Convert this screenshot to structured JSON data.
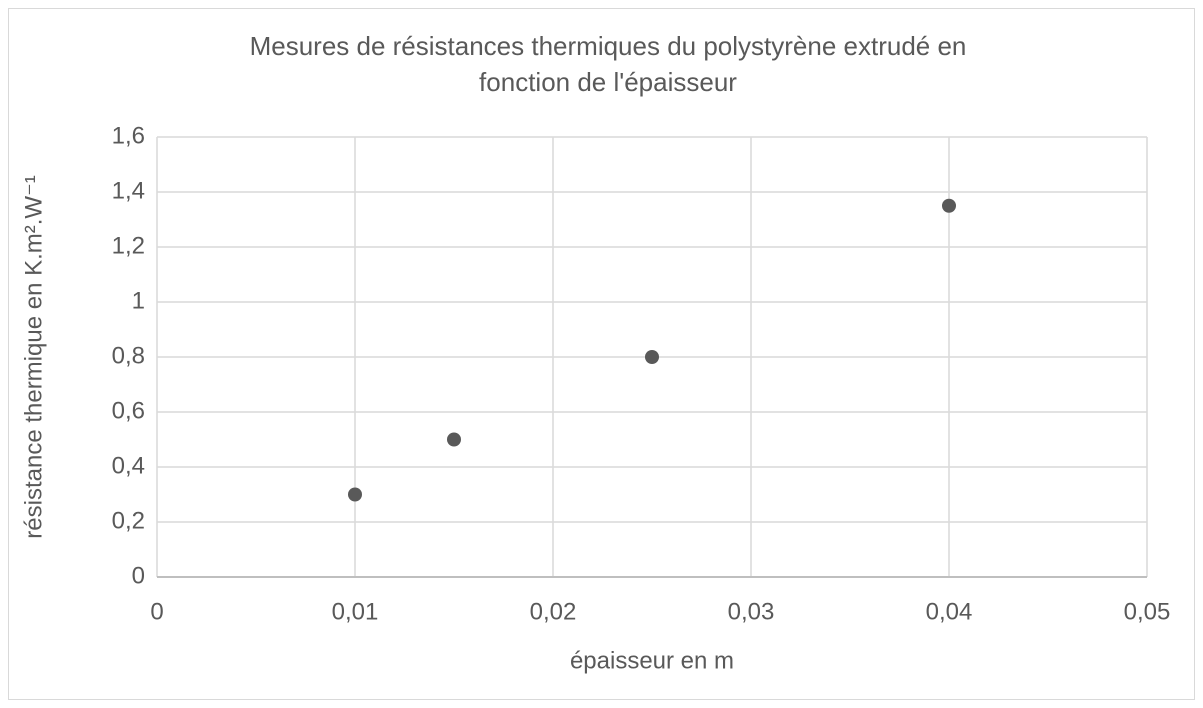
{
  "chart_data": {
    "type": "scatter",
    "title": [
      "Mesures de résistances thermiques du polystyrène extrudé en",
      "fonction de l'épaisseur"
    ],
    "x_label": "épaisseur en m",
    "y_label": "résistance thermique en K.m².W⁻¹",
    "x": [
      0.01,
      0.015,
      0.025,
      0.04
    ],
    "series": [
      {
        "name": null,
        "color": "#595959",
        "values": [
          0.3,
          0.5,
          0.8,
          1.35
        ]
      }
    ],
    "xlim": [
      0,
      0.05
    ],
    "ylim": [
      0,
      1.6
    ],
    "xticks": [
      0,
      {
        "value": 0.01,
        "label": "0,01"
      },
      {
        "value": 0.02,
        "label": "0,02"
      },
      {
        "value": 0.03,
        "label": "0,03"
      },
      {
        "value": 0.04,
        "label": "0,04"
      },
      {
        "value": 0.05,
        "label": "0,05"
      }
    ],
    "yticks": [
      0,
      {
        "value": 0.2,
        "label": "0,2"
      },
      {
        "value": 0.4,
        "label": "0,4"
      },
      {
        "value": 0.6,
        "label": "0,6"
      },
      {
        "value": 0.8,
        "label": "0,8"
      },
      1,
      {
        "value": 1.2,
        "label": "1,2"
      },
      {
        "value": 1.4,
        "label": "1,4"
      },
      {
        "value": 1.6,
        "label": "1,6"
      }
    ],
    "grid": true
  }
}
